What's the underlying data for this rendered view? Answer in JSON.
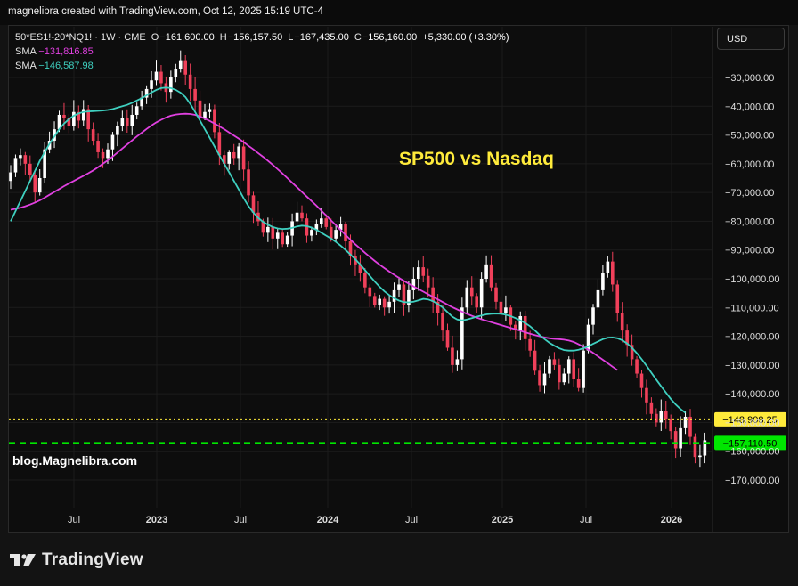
{
  "header": {
    "text": "magnelibra created with TradingView.com, Oct 12, 2025 15:19 UTC-4"
  },
  "legend": {
    "symbol_line": [
      {
        "text": "50*ES1!-20*NQ1! · 1W · CME",
        "color": "#e6e6e6"
      },
      {
        "text": "O",
        "color": "#e6e6e6"
      },
      {
        "text": "−161,600.00",
        "color": "#ffffff"
      },
      {
        "text": "H",
        "color": "#e6e6e6"
      },
      {
        "text": "−156,157.50",
        "color": "#ffffff"
      },
      {
        "text": "L",
        "color": "#e6e6e6"
      },
      {
        "text": "−167,435.00",
        "color": "#ffffff"
      },
      {
        "text": "C",
        "color": "#e6e6e6"
      },
      {
        "text": "−156,160.00",
        "color": "#ffffff"
      },
      {
        "text": "+5,330.00 (+3.30%)",
        "color": "#ffffff"
      }
    ],
    "sma1": {
      "label": "SMA",
      "value": "−131,816.85",
      "color": "#e040e0"
    },
    "sma2": {
      "label": "SMA",
      "value": "−146,587.98",
      "color": "#3fd0c0"
    }
  },
  "toolbar": {
    "currency": "USD"
  },
  "footer": {
    "brand": "TradingView"
  },
  "chart_data": {
    "type": "candlestick",
    "title": "SP500 vs Nasdaq",
    "watermark": "blog.Magnelibra.com",
    "yaxis": {
      "min": -178000,
      "max": -20000,
      "ticks": [
        -30000,
        -40000,
        -50000,
        -60000,
        -70000,
        -80000,
        -90000,
        -100000,
        -110000,
        -120000,
        -130000,
        -140000,
        -150000,
        -160000,
        -170000
      ],
      "tick_labels": [
        "−30,000.00",
        "−40,000.00",
        "−50,000.00",
        "−60,000.00",
        "−70,000.00",
        "−80,000.00",
        "−90,000.00",
        "−100,000.00",
        "−110,000.00",
        "−120,000.00",
        "−130,000.00",
        "−140,000.00",
        "−150,000.00",
        "−160,000.00",
        "−170,000.00"
      ]
    },
    "xaxis": {
      "ticks": [
        {
          "label": "Jul",
          "date": "2022-07"
        },
        {
          "label": "2023",
          "date": "2023-01"
        },
        {
          "label": "Jul",
          "date": "2023-07"
        },
        {
          "label": "2024",
          "date": "2024-01"
        },
        {
          "label": "Jul",
          "date": "2024-07"
        },
        {
          "label": "2025",
          "date": "2025-01"
        },
        {
          "label": "Jul",
          "date": "2025-07"
        },
        {
          "label": "2026",
          "date": "2026-01"
        }
      ]
    },
    "price_lines": [
      {
        "value": -148908.25,
        "label": "−148,908.25",
        "color": "#ffeb3b",
        "style": "dotted"
      },
      {
        "value": -157110.5,
        "label": "−157,110.50",
        "color": "#00e600",
        "style": "dashed"
      }
    ],
    "colors": {
      "up": "#ffffff",
      "down": "#f0405a",
      "sma_slow": "#e040e0",
      "sma_fast": "#3fd0c0",
      "title": "#ffeb3b"
    },
    "close": [
      -63000,
      -58000,
      -57000,
      -60000,
      -64000,
      -70000,
      -65000,
      -55000,
      -52000,
      -48000,
      -43000,
      -44000,
      -47000,
      -42000,
      -45000,
      -41000,
      -48000,
      -52000,
      -56000,
      -58000,
      -55000,
      -50000,
      -47000,
      -44000,
      -47000,
      -43000,
      -40000,
      -37000,
      -34000,
      -31000,
      -28000,
      -32000,
      -35000,
      -30000,
      -27000,
      -24000,
      -29000,
      -34000,
      -38000,
      -44000,
      -42000,
      -41000,
      -49000,
      -57000,
      -60000,
      -56000,
      -58000,
      -54000,
      -62000,
      -71000,
      -77000,
      -80000,
      -84000,
      -82000,
      -86000,
      -84000,
      -88000,
      -85000,
      -80000,
      -77000,
      -79000,
      -85000,
      -83000,
      -81000,
      -79000,
      -82000,
      -86000,
      -83000,
      -81000,
      -87000,
      -92000,
      -95000,
      -98000,
      -103000,
      -106000,
      -109000,
      -107000,
      -110000,
      -108000,
      -104000,
      -102000,
      -109000,
      -104000,
      -100000,
      -96000,
      -99000,
      -103000,
      -108000,
      -112000,
      -118000,
      -124000,
      -130000,
      -128000,
      -110000,
      -103000,
      -106000,
      -110000,
      -100000,
      -95000,
      -103000,
      -108000,
      -112000,
      -110000,
      -116000,
      -118000,
      -113000,
      -121000,
      -125000,
      -132000,
      -137000,
      -133000,
      -128000,
      -130000,
      -136000,
      -133000,
      -128000,
      -135000,
      -138000,
      -125000,
      -116000,
      -110000,
      -104000,
      -98000,
      -94000,
      -102000,
      -112000,
      -118000,
      -123000,
      -128000,
      -133000,
      -138000,
      -143000,
      -147000,
      -150000,
      -146000,
      -149000,
      -153000,
      -159000,
      -152000,
      -148000,
      -155000,
      -162000,
      -161500,
      -156200
    ],
    "sma_fast": [
      -80000,
      -76500,
      -73000,
      -69500,
      -66000,
      -62500,
      -59000,
      -56000,
      -53000,
      -50500,
      -48000,
      -46000,
      -44500,
      -43300,
      -42500,
      -42000,
      -41800,
      -41700,
      -41600,
      -41500,
      -41300,
      -41000,
      -40500,
      -40000,
      -39500,
      -38800,
      -38000,
      -37200,
      -36200,
      -35200,
      -34300,
      -33700,
      -33500,
      -33700,
      -34300,
      -35300,
      -36800,
      -39200,
      -42000,
      -45000,
      -48000,
      -51000,
      -54000,
      -57000,
      -60000,
      -63000,
      -66000,
      -69000,
      -72000,
      -74800,
      -77000,
      -78800,
      -80200,
      -81200,
      -82000,
      -82500,
      -82700,
      -82600,
      -82300,
      -81800,
      -81500,
      -81700,
      -82200,
      -83000,
      -84000,
      -85000,
      -86000,
      -87200,
      -88500,
      -90000,
      -91600,
      -93200,
      -95000,
      -97000,
      -99000,
      -101000,
      -102800,
      -104400,
      -105700,
      -106800,
      -107600,
      -108100,
      -108200,
      -108000,
      -107500,
      -107000,
      -107200,
      -107800,
      -108800,
      -110000,
      -111600,
      -113200,
      -114200,
      -114500,
      -114200,
      -113700,
      -113200,
      -112800,
      -112400,
      -112200,
      -112100,
      -112200,
      -112500,
      -113000,
      -113700,
      -114500,
      -115400,
      -116500,
      -118000,
      -119600,
      -121000,
      -122300,
      -123300,
      -124200,
      -124800,
      -125000,
      -125000,
      -124700,
      -124200,
      -123500,
      -122600,
      -121800,
      -121000,
      -120500,
      -120400,
      -120700,
      -121400,
      -122500,
      -124000,
      -125900,
      -128000,
      -130300,
      -132700,
      -135100,
      -137400,
      -139600,
      -141800,
      -143700,
      -145300,
      -146600
    ],
    "sma_slow": [
      -76000,
      -75700,
      -75300,
      -74800,
      -74200,
      -73500,
      -72700,
      -71800,
      -70800,
      -69800,
      -68800,
      -67800,
      -66900,
      -66000,
      -65100,
      -64200,
      -63300,
      -62300,
      -61200,
      -60000,
      -58800,
      -57500,
      -56100,
      -54700,
      -53300,
      -51900,
      -50500,
      -49200,
      -47900,
      -46700,
      -45600,
      -44700,
      -43900,
      -43300,
      -42900,
      -42700,
      -42600,
      -42700,
      -43000,
      -43600,
      -44300,
      -45100,
      -46000,
      -47000,
      -48000,
      -49100,
      -50200,
      -51300,
      -52500,
      -53800,
      -55000,
      -56300,
      -57600,
      -59000,
      -60400,
      -61900,
      -63400,
      -65000,
      -66600,
      -68200,
      -69800,
      -71400,
      -73000,
      -74600,
      -76300,
      -78000,
      -79700,
      -81400,
      -83100,
      -84800,
      -86400,
      -88000,
      -89500,
      -91000,
      -92400,
      -93800,
      -95100,
      -96300,
      -97500,
      -98600,
      -99700,
      -100700,
      -101700,
      -102700,
      -103600,
      -104500,
      -105400,
      -106300,
      -107200,
      -108100,
      -109000,
      -109900,
      -110700,
      -111500,
      -112200,
      -112900,
      -113500,
      -114100,
      -114600,
      -115100,
      -115600,
      -116100,
      -116600,
      -117100,
      -117600,
      -118100,
      -118600,
      -119100,
      -119600,
      -120000,
      -120400,
      -120700,
      -120900,
      -121000,
      -121200,
      -121500,
      -122000,
      -122800,
      -123700,
      -124700,
      -125800,
      -127000,
      -128200,
      -129400,
      -130600,
      -131800
    ]
  }
}
